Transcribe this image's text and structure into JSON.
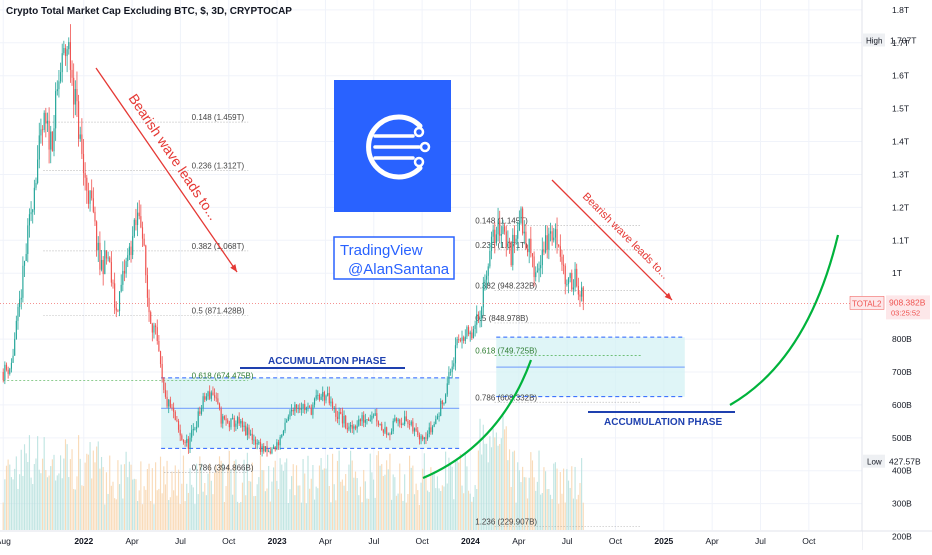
{
  "header": {
    "title": "Crypto Total Market Cap Excluding BTC, $, 3D, CRYPTOCAP"
  },
  "price_axis": {
    "ticks": [
      {
        "v": 1.8,
        "label": "1.8T"
      },
      {
        "v": 1.7,
        "label": "1.7T"
      },
      {
        "v": 1.6,
        "label": "1.6T"
      },
      {
        "v": 1.5,
        "label": "1.5T"
      },
      {
        "v": 1.4,
        "label": "1.4T"
      },
      {
        "v": 1.3,
        "label": "1.3T"
      },
      {
        "v": 1.2,
        "label": "1.2T"
      },
      {
        "v": 1.1,
        "label": "1.1T"
      },
      {
        "v": 1.0,
        "label": "1T"
      },
      {
        "v": 0.8,
        "label": "800B"
      },
      {
        "v": 0.7,
        "label": "700B"
      },
      {
        "v": 0.6,
        "label": "600B"
      },
      {
        "v": 0.5,
        "label": "500B"
      },
      {
        "v": 0.4,
        "label": "400B"
      },
      {
        "v": 0.3,
        "label": "300B"
      },
      {
        "v": 0.2,
        "label": "200B"
      }
    ],
    "high": {
      "tag": "High",
      "value_label": "1.707T",
      "v": 1.707
    },
    "low": {
      "tag": "Low",
      "value_label": "427.57B",
      "v": 0.42757
    },
    "current": {
      "tag": "TOTAL2",
      "value_label": "908.382B",
      "countdown": "03:25:52",
      "v": 0.908382
    }
  },
  "time_axis": [
    {
      "t": 0,
      "label": "Aug"
    },
    {
      "t": 5,
      "label": "2022"
    },
    {
      "t": 8,
      "label": "Apr"
    },
    {
      "t": 11,
      "label": "Jul"
    },
    {
      "t": 14,
      "label": "Oct"
    },
    {
      "t": 17,
      "label": "2023"
    },
    {
      "t": 20,
      "label": "Apr"
    },
    {
      "t": 23,
      "label": "Jul"
    },
    {
      "t": 26,
      "label": "Oct"
    },
    {
      "t": 29,
      "label": "2024"
    },
    {
      "t": 32,
      "label": "Apr"
    },
    {
      "t": 35,
      "label": "Jul"
    },
    {
      "t": 38,
      "label": "Oct"
    },
    {
      "t": 41,
      "label": "2025"
    },
    {
      "t": 44,
      "label": "Apr"
    },
    {
      "t": 47,
      "label": "Jul"
    },
    {
      "t": 50,
      "label": "Oct"
    }
  ],
  "fib_levels": [
    {
      "label": "0.148 (1.459T)",
      "v": 1.459,
      "t0": 2.5,
      "t1": 15.2
    },
    {
      "label": "0.236 (1.312T)",
      "v": 1.312,
      "t0": 2.5,
      "t1": 15.2
    },
    {
      "label": "0.382 (1.068T)",
      "v": 1.068,
      "t0": 2.5,
      "t1": 15.2
    },
    {
      "label": "0.5 (871.428B)",
      "v": 0.871,
      "t0": 2.5,
      "t1": 15.2
    },
    {
      "label": "0.618 (674.475B)",
      "v": 0.674,
      "t0": 0,
      "t1": 15.2
    },
    {
      "label": "0.786 (394.866B)",
      "v": 0.395,
      "t0": 10,
      "t1": 15.2
    },
    {
      "label": "0.148 (1.145T)",
      "v": 1.145,
      "t0": 30.5,
      "t1": 39.6
    },
    {
      "label": "0.236 (1.071T)",
      "v": 1.071,
      "t0": 30.5,
      "t1": 39.6
    },
    {
      "label": "0.382 (948.232B)",
      "v": 0.948,
      "t0": 30.5,
      "t1": 39.6
    },
    {
      "label": "0.5 (848.978B)",
      "v": 0.849,
      "t0": 30.5,
      "t1": 39.6
    },
    {
      "label": "0.618 (749.725B)",
      "v": 0.75,
      "t0": 30.5,
      "t1": 39.6
    },
    {
      "label": "0.786 (608.332B)",
      "v": 0.608,
      "t0": 30.5,
      "t1": 39.6
    },
    {
      "label": "1.236 (229.907B)",
      "v": 0.23,
      "t0": 30.5,
      "t1": 39.6
    }
  ],
  "annotations": {
    "accumulation_1": "ACCUMULATION PHASE",
    "accumulation_2": "ACCUMULATION PHASE",
    "bearish_1": "Bearish wave leads to...",
    "bearish_2": "Bearish wave leads to...",
    "watermark_line1": "TradingView",
    "watermark_line2": "@AlanSantana"
  },
  "colors": {
    "up": "#26a69a",
    "down": "#ef5350",
    "accent_blue": "#2962ff",
    "annotation_red": "#e53935",
    "curve_green": "#00b33c",
    "zone_fill": "#d4f1f4"
  },
  "chart_data": {
    "type": "candlestick",
    "title": "Crypto Total Market Cap Excluding BTC, $, 3D, CRYPTOCAP",
    "x_unit": "months since Aug 2021",
    "y_unit": "USD trillions",
    "ylim": [
      0.22,
      1.83
    ],
    "xlim": [
      -0.2,
      53.3
    ],
    "path_anchors": [
      [
        0,
        0.7
      ],
      [
        0.5,
        0.72
      ],
      [
        1,
        0.9
      ],
      [
        1.5,
        1.1
      ],
      [
        2,
        1.3
      ],
      [
        2.5,
        1.45
      ],
      [
        3,
        1.4
      ],
      [
        3.5,
        1.6
      ],
      [
        4,
        1.7
      ],
      [
        4.5,
        1.52
      ],
      [
        5,
        1.3
      ],
      [
        5.5,
        1.2
      ],
      [
        6,
        1.02
      ],
      [
        6.5,
        1.05
      ],
      [
        7,
        0.88
      ],
      [
        7.5,
        1.0
      ],
      [
        8,
        1.1
      ],
      [
        8.5,
        1.2
      ],
      [
        9,
        0.9
      ],
      [
        9.5,
        0.8
      ],
      [
        10,
        0.62
      ],
      [
        10.5,
        0.58
      ],
      [
        11,
        0.5
      ],
      [
        11.5,
        0.48
      ],
      [
        12,
        0.55
      ],
      [
        12.5,
        0.62
      ],
      [
        13,
        0.64
      ],
      [
        13.5,
        0.56
      ],
      [
        14,
        0.54
      ],
      [
        14.5,
        0.55
      ],
      [
        15,
        0.52
      ],
      [
        15.5,
        0.5
      ],
      [
        16,
        0.47
      ],
      [
        16.5,
        0.45
      ],
      [
        17,
        0.48
      ],
      [
        17.5,
        0.53
      ],
      [
        18,
        0.6
      ],
      [
        18.5,
        0.6
      ],
      [
        19,
        0.58
      ],
      [
        19.5,
        0.62
      ],
      [
        20,
        0.63
      ],
      [
        20.5,
        0.58
      ],
      [
        21,
        0.56
      ],
      [
        21.5,
        0.52
      ],
      [
        22,
        0.55
      ],
      [
        22.5,
        0.56
      ],
      [
        23,
        0.58
      ],
      [
        23.5,
        0.53
      ],
      [
        24,
        0.52
      ],
      [
        24.5,
        0.56
      ],
      [
        25,
        0.55
      ],
      [
        25.5,
        0.52
      ],
      [
        26,
        0.51
      ],
      [
        26.5,
        0.52
      ],
      [
        27,
        0.57
      ],
      [
        27.5,
        0.65
      ],
      [
        28,
        0.75
      ],
      [
        28.5,
        0.82
      ],
      [
        29,
        0.8
      ],
      [
        29.5,
        0.86
      ],
      [
        30,
        1.02
      ],
      [
        30.5,
        1.12
      ],
      [
        31,
        1.15
      ],
      [
        31.5,
        1.05
      ],
      [
        32,
        1.18
      ],
      [
        32.5,
        1.1
      ],
      [
        33,
        1.0
      ],
      [
        33.5,
        1.07
      ],
      [
        34,
        1.12
      ],
      [
        34.5,
        1.1
      ],
      [
        35,
        0.95
      ],
      [
        35.5,
        1.0
      ],
      [
        36,
        0.91
      ]
    ],
    "volume_range": [
      0,
      47
    ]
  }
}
